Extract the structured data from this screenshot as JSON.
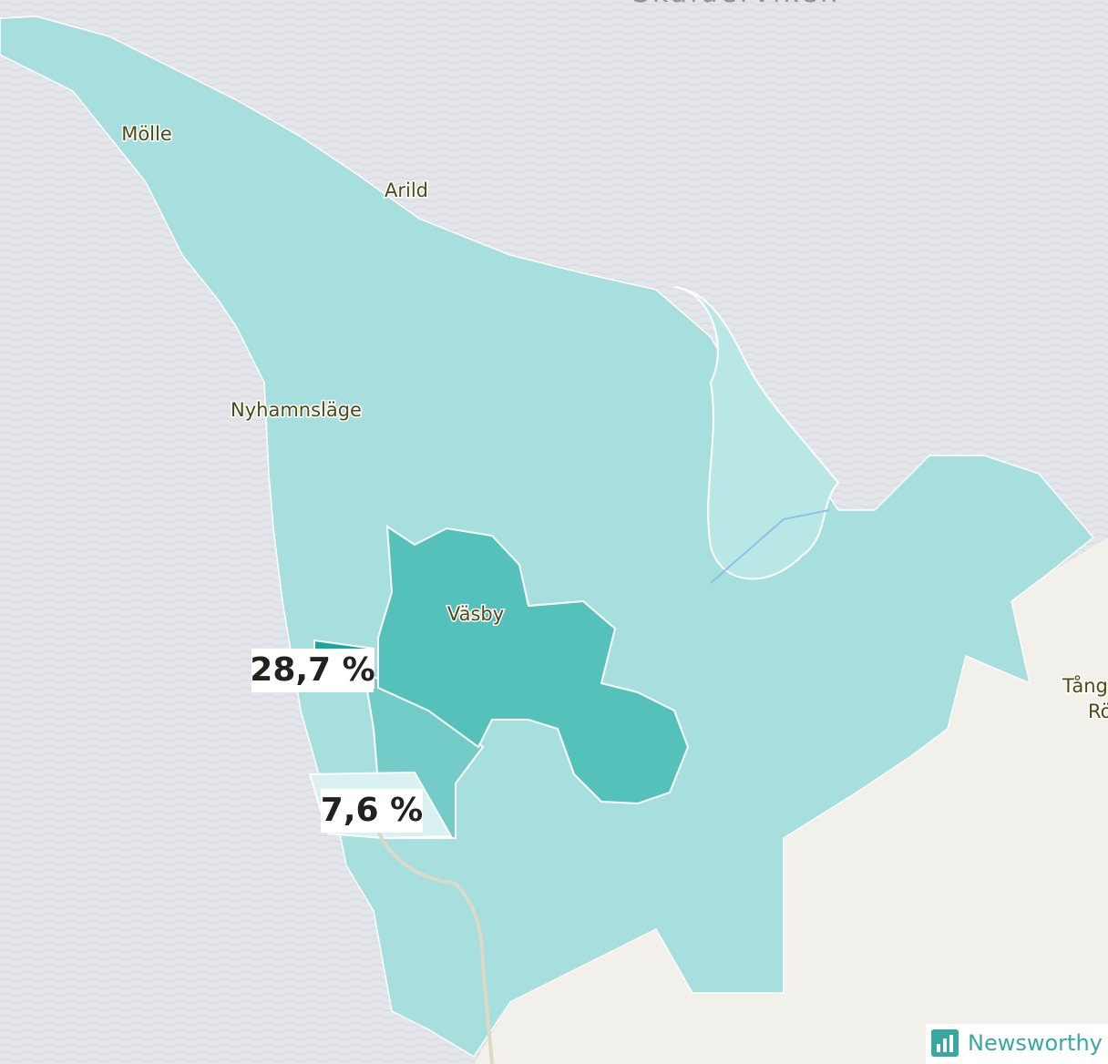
{
  "map": {
    "water_label": "Skälderviken",
    "places": [
      "Mölle",
      "Arild",
      "Nyhamnsläge",
      "Väsby",
      "Tång",
      "Rö"
    ],
    "area_labels": [
      "28,7 %",
      "7,6 %"
    ],
    "brand": "Newsworthy"
  }
}
